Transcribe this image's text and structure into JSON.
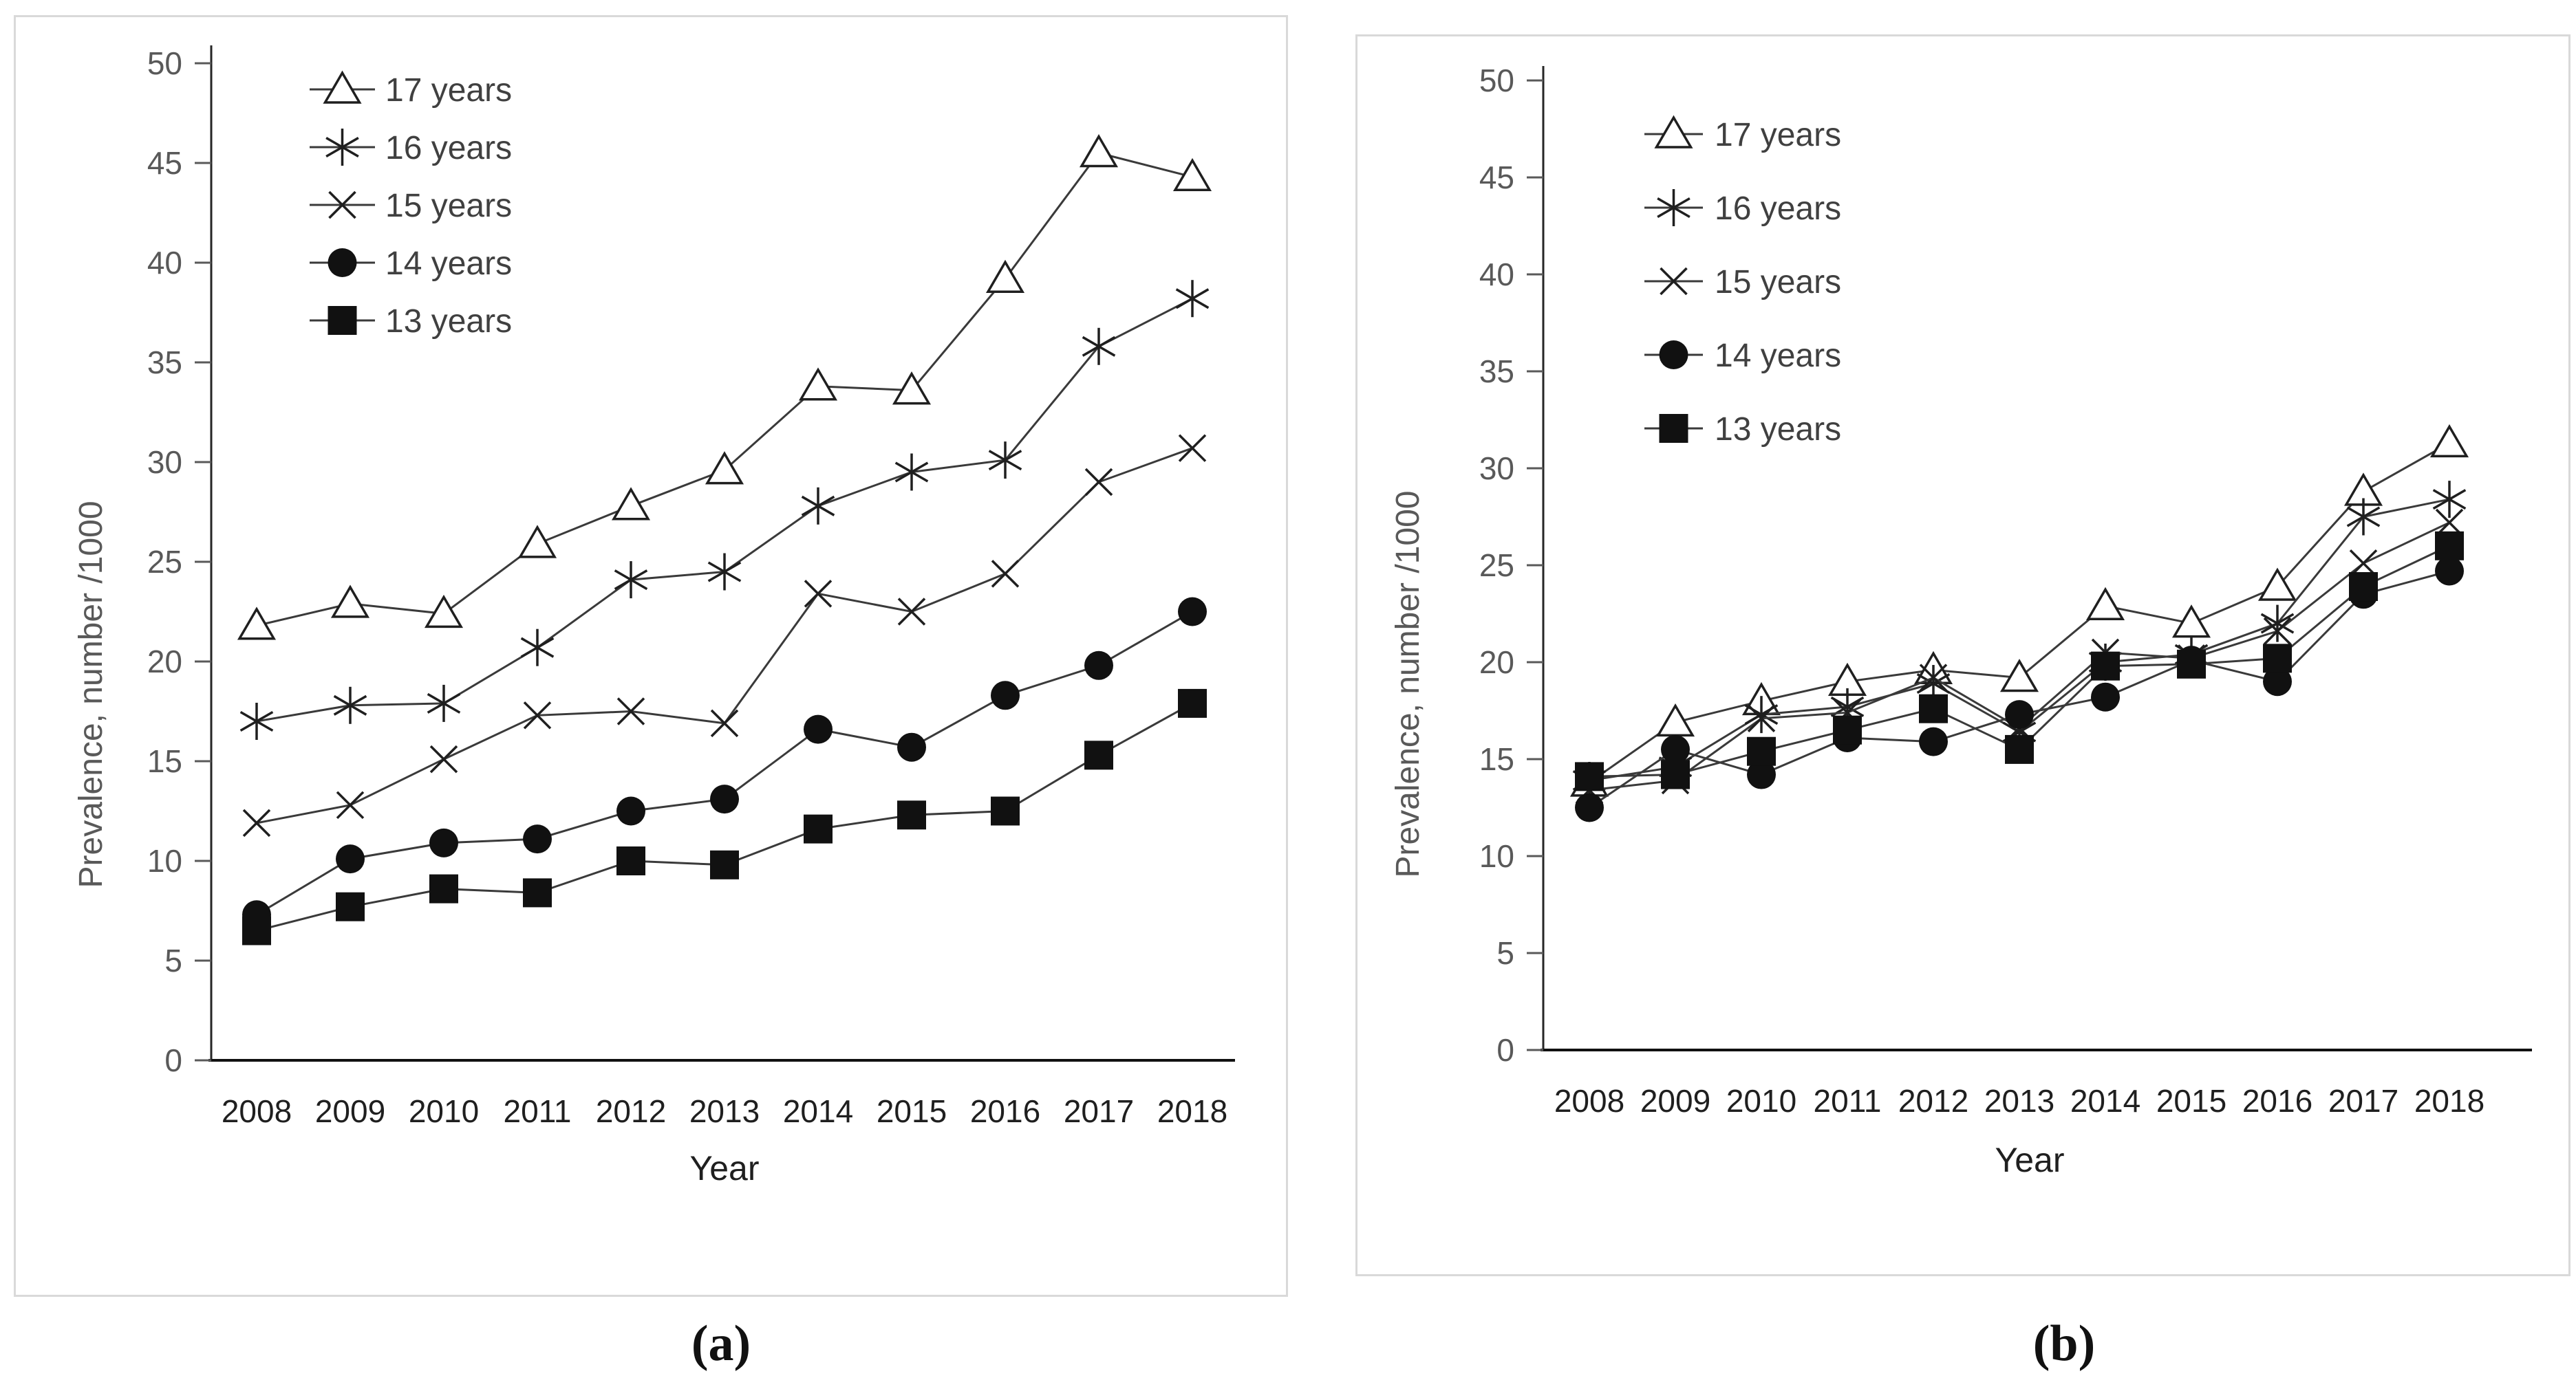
{
  "figure": {
    "background": "#ffffff",
    "panel_border_color": "#d9d9d9",
    "line_color": "#3a3a3a",
    "marker_stroke_color": "#1f1f1f",
    "marker_fill_color": "#111111",
    "y_tick_text_color": "#595959",
    "x_tick_text_color": "#1f1f1f",
    "legend_text_color": "#404040"
  },
  "chart_data": [
    {
      "type": "line",
      "panel": "a",
      "title": "(a)",
      "xlabel": "Year",
      "ylabel": "Prevalence, number /1000",
      "x": [
        2008,
        2009,
        2010,
        2011,
        2012,
        2013,
        2014,
        2015,
        2016,
        2017,
        2018
      ],
      "ylim": [
        0,
        50
      ],
      "ytick_step": 5,
      "grid": false,
      "legend_position": "upper-left-inside",
      "series": [
        {
          "name": "17 years",
          "marker": "open-triangle",
          "values": [
            21.8,
            22.9,
            22.4,
            25.9,
            27.8,
            29.6,
            33.8,
            33.6,
            39.2,
            45.5,
            44.3
          ]
        },
        {
          "name": "16 years",
          "marker": "asterisk",
          "values": [
            17.0,
            17.8,
            17.9,
            20.7,
            24.1,
            24.5,
            27.8,
            29.5,
            30.1,
            35.8,
            38.2
          ]
        },
        {
          "name": "15 years",
          "marker": "x-cross",
          "values": [
            11.9,
            12.8,
            15.1,
            17.3,
            17.5,
            16.9,
            23.4,
            22.5,
            24.4,
            29.0,
            30.7
          ]
        },
        {
          "name": "14 years",
          "marker": "filled-circle",
          "values": [
            7.3,
            10.1,
            10.9,
            11.1,
            12.5,
            13.1,
            16.6,
            15.7,
            18.3,
            19.8,
            22.5
          ]
        },
        {
          "name": "13 years",
          "marker": "filled-square",
          "values": [
            6.5,
            7.7,
            8.6,
            8.4,
            10.0,
            9.8,
            11.6,
            12.3,
            12.5,
            15.3,
            17.9
          ]
        }
      ]
    },
    {
      "type": "line",
      "panel": "b",
      "title": "(b)",
      "xlabel": "Year",
      "ylabel": "Prevalence, number /1000",
      "x": [
        2008,
        2009,
        2010,
        2011,
        2012,
        2013,
        2014,
        2015,
        2016,
        2017,
        2018
      ],
      "ylim": [
        0,
        50
      ],
      "ytick_step": 5,
      "grid": false,
      "legend_position": "upper-left-inside",
      "series": [
        {
          "name": "17 years",
          "marker": "open-triangle",
          "values": [
            13.8,
            16.9,
            18.0,
            19.0,
            19.6,
            19.2,
            22.9,
            22.0,
            23.9,
            28.8,
            31.3
          ]
        },
        {
          "name": "16 years",
          "marker": "asterisk",
          "values": [
            13.9,
            14.6,
            17.3,
            17.7,
            18.9,
            16.4,
            20.0,
            20.4,
            22.0,
            27.5,
            28.4
          ]
        },
        {
          "name": "15 years",
          "marker": "x-cross",
          "values": [
            13.4,
            13.9,
            17.1,
            17.4,
            19.2,
            16.6,
            20.5,
            20.2,
            21.6,
            25.1,
            27.2
          ]
        },
        {
          "name": "14 years",
          "marker": "filled-circle",
          "values": [
            12.5,
            15.5,
            14.2,
            16.1,
            15.9,
            17.3,
            18.2,
            20.1,
            19.0,
            23.5,
            24.7
          ]
        },
        {
          "name": "13 years",
          "marker": "filled-square",
          "values": [
            14.1,
            14.2,
            15.4,
            16.5,
            17.6,
            15.5,
            19.8,
            19.9,
            20.2,
            23.9,
            26.0
          ]
        }
      ]
    }
  ]
}
